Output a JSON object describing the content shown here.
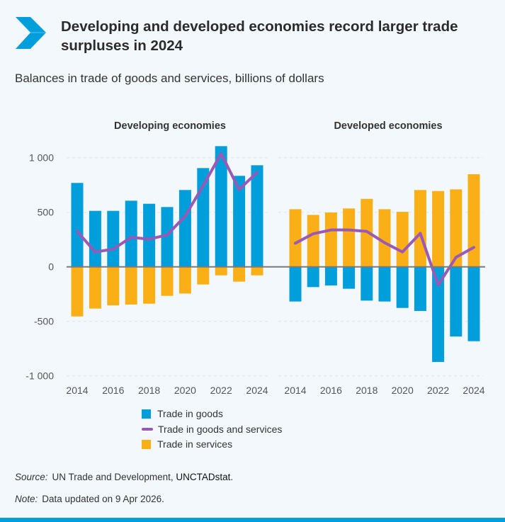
{
  "header": {
    "title": "Developing and developed economies record larger trade surpluses in 2024",
    "subtitle": "Balances in trade of goods and services, billions of dollars",
    "logo_icon": "chevron-right-icon"
  },
  "colors": {
    "goods": "#009edb",
    "services": "#fbaf17",
    "total": "#9b59b6",
    "accent": "#009edb"
  },
  "chart_data": [
    {
      "type": "bar",
      "title": "Developing economies",
      "x": [
        2014,
        2015,
        2016,
        2017,
        2018,
        2019,
        2020,
        2021,
        2022,
        2023,
        2024
      ],
      "xticks": [
        "2014",
        "2016",
        "2018",
        "2020",
        "2022",
        "2024"
      ],
      "yticks": [
        "1 000",
        "500",
        "0",
        "-500",
        "-1 000"
      ],
      "ylim": [
        -1000,
        1100
      ],
      "grid": true,
      "series": [
        {
          "name": "Trade in goods",
          "kind": "bar",
          "values": [
            769,
            513,
            513,
            606,
            578,
            548,
            704,
            905,
            1106,
            834,
            931
          ]
        },
        {
          "name": "Trade in services",
          "kind": "bar",
          "values": [
            -455,
            -383,
            -353,
            -346,
            -338,
            -266,
            -245,
            -162,
            -78,
            -136,
            -78
          ]
        },
        {
          "name": "Trade in goods and services",
          "kind": "line",
          "values": [
            325,
            136,
            162,
            271,
            253,
            292,
            465,
            743,
            1039,
            708,
            866
          ]
        }
      ]
    },
    {
      "type": "bar",
      "title": "Developed economies",
      "x": [
        2014,
        2015,
        2016,
        2017,
        2018,
        2019,
        2020,
        2021,
        2022,
        2023,
        2024
      ],
      "xticks": [
        "2014",
        "2016",
        "2018",
        "2020",
        "2022",
        "2024"
      ],
      "ylim": [
        -1000,
        1100
      ],
      "grid": true,
      "series": [
        {
          "name": "Trade in goods",
          "kind": "bar",
          "values": [
            -318,
            -186,
            -171,
            -201,
            -310,
            -318,
            -377,
            -405,
            -872,
            -639,
            -682
          ]
        },
        {
          "name": "Trade in services",
          "kind": "bar",
          "values": [
            528,
            476,
            498,
            535,
            623,
            528,
            504,
            704,
            695,
            710,
            849
          ]
        },
        {
          "name": "Trade in goods and services",
          "kind": "line",
          "values": [
            216,
            303,
            338,
            338,
            325,
            221,
            136,
            307,
            -167,
            87,
            178
          ]
        }
      ]
    }
  ],
  "legend": {
    "position": "bottom",
    "items": [
      "Trade in goods",
      "Trade in goods and services",
      "Trade in services"
    ]
  },
  "footer": {
    "source_label": "Source:",
    "source_text": "UN Trade and Development, ",
    "source_link": "UNCTADstat",
    "source_end": ".",
    "note_label": "Note:",
    "note_text": "Data updated on 9 Apr 2026."
  }
}
